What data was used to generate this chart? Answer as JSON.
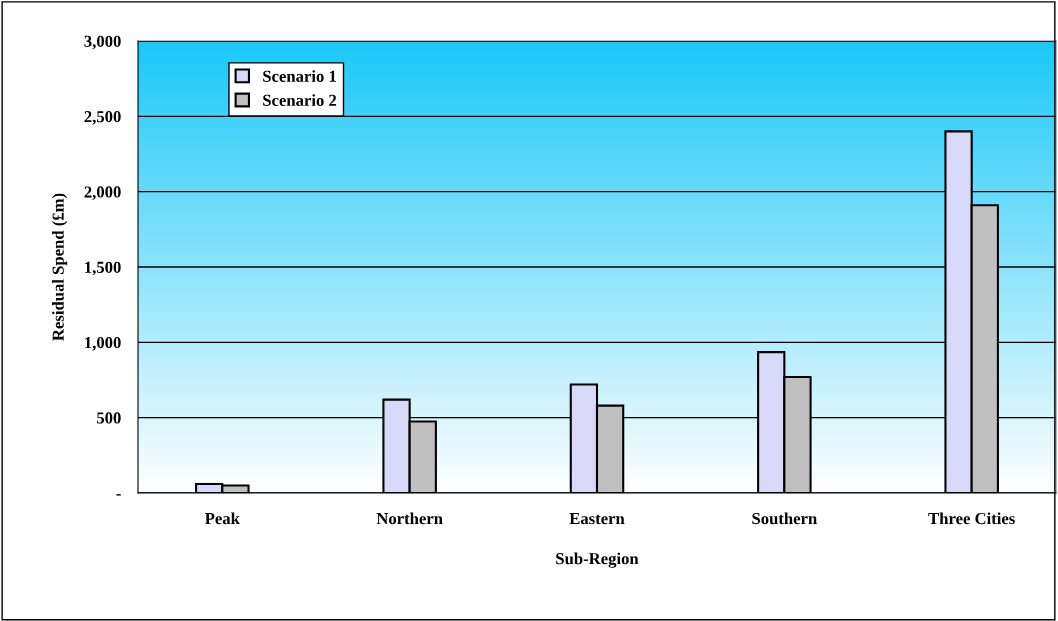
{
  "chart_data": {
    "type": "bar",
    "xlabel": "Sub-Region",
    "ylabel": "Residual Spend (£m)",
    "categories": [
      "Peak",
      "Northern",
      "Eastern",
      "Southern",
      "Three Cities"
    ],
    "series": [
      {
        "name": "Scenario 1",
        "color": "#d8d8f8",
        "values": [
          60,
          620,
          720,
          935,
          2400
        ]
      },
      {
        "name": "Scenario 2",
        "color": "#c0c0c0",
        "values": [
          50,
          475,
          580,
          770,
          1910
        ]
      }
    ],
    "ylim": [
      0,
      3000
    ],
    "yticks": [
      {
        "value": 0,
        "label": "-"
      },
      {
        "value": 500,
        "label": "500"
      },
      {
        "value": 1000,
        "label": "1,000"
      },
      {
        "value": 1500,
        "label": "1,500"
      },
      {
        "value": 2000,
        "label": "2,000"
      },
      {
        "value": 2500,
        "label": "2,500"
      },
      {
        "value": 3000,
        "label": "3,000"
      }
    ],
    "grid": "y",
    "legend": "top left"
  }
}
